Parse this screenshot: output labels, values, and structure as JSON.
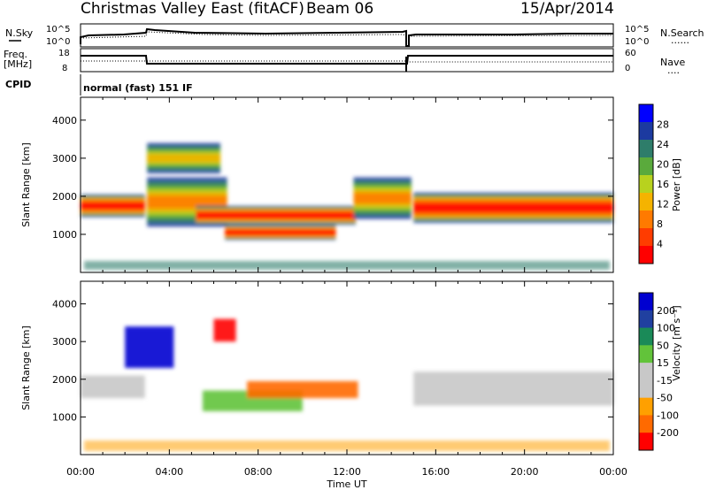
{
  "header": {
    "station": "Christmas Valley East (fitACF)",
    "beam": "Beam 06",
    "date": "15/Apr/2014"
  },
  "panels": {
    "nsky_label": "N.Sky",
    "nsearch_label": "N.Search",
    "nsearch_dots": "......",
    "freq_label_line1": "Freq.",
    "freq_label_line2": "[MHz]",
    "nave_label": "Nave",
    "nave_dots": "....",
    "cpid_label": "CPID",
    "cpid_value": "normal (fast) 151 IF",
    "nsky_ticks": [
      "10^5",
      "10^0"
    ],
    "nsearch_ticks": [
      "10^5",
      "10^0"
    ],
    "freq_ticks": [
      "18",
      "8"
    ],
    "nave_ticks": [
      "60",
      "0"
    ]
  },
  "colors": {
    "power_scale": [
      "#0000ff",
      "#1c3aa0",
      "#2e7d6a",
      "#5aaa3c",
      "#b8d21e",
      "#f5b300",
      "#ff7a00",
      "#ff3c00",
      "#ff0000"
    ],
    "velocity_scale": [
      "#0000d0",
      "#2040a0",
      "#1a8a58",
      "#62c33a",
      "#c8c8c8",
      "#c8c8c8",
      "#ffa000",
      "#ff6a00",
      "#ff0000"
    ]
  },
  "chart_data": [
    {
      "type": "heatmap",
      "name": "power",
      "xlabel": "",
      "ylabel": "Slant Range [km]",
      "xlim": [
        "00:00",
        "24:00"
      ],
      "ylim": [
        0,
        4600
      ],
      "yticks": [
        "4000",
        "3000",
        "2000",
        "1000"
      ],
      "colorbar": {
        "label": "Power [dB]",
        "ticks": [
          "28",
          "24",
          "20",
          "16",
          "12",
          "8",
          "4"
        ]
      },
      "echo_regions": [
        {
          "t_start": 0.0,
          "t_end": 2.9,
          "range_start": 1450,
          "range_end": 2050,
          "level": "high"
        },
        {
          "t_start": 3.0,
          "t_end": 6.6,
          "range_start": 1200,
          "range_end": 2500,
          "level": "medium"
        },
        {
          "t_start": 5.2,
          "t_end": 12.4,
          "range_start": 1250,
          "range_end": 1750,
          "level": "high"
        },
        {
          "t_start": 6.5,
          "t_end": 11.5,
          "range_start": 850,
          "range_end": 1250,
          "level": "high"
        },
        {
          "t_start": 12.3,
          "t_end": 14.9,
          "range_start": 1400,
          "range_end": 2500,
          "level": "medium"
        },
        {
          "t_start": 15.0,
          "t_end": 24.0,
          "range_start": 1300,
          "range_end": 2100,
          "level": "high"
        },
        {
          "t_start": 3.0,
          "t_end": 6.3,
          "range_start": 2600,
          "range_end": 3400,
          "level": "low"
        }
      ]
    },
    {
      "type": "heatmap",
      "name": "velocity",
      "xlabel": "Time UT",
      "ylabel": "Slant Range [km]",
      "xlim": [
        "00:00",
        "24:00"
      ],
      "ylim": [
        0,
        4600
      ],
      "xticks": [
        "00:00",
        "04:00",
        "08:00",
        "12:00",
        "16:00",
        "20:00",
        "00:00"
      ],
      "yticks": [
        "4000",
        "3000",
        "2000",
        "1000"
      ],
      "colorbar": {
        "label": "Velocity [m s⁻¹]",
        "ticks": [
          "200",
          "100",
          "50",
          "15",
          "-15",
          "-50",
          "-100",
          "-200"
        ]
      },
      "echo_regions": [
        {
          "t_start": 0.0,
          "t_end": 2.9,
          "range_start": 1500,
          "range_end": 2100,
          "velocity": 0
        },
        {
          "t_start": 2.0,
          "t_end": 4.2,
          "range_start": 2300,
          "range_end": 3400,
          "velocity": 200
        },
        {
          "t_start": 6.0,
          "t_end": 7.0,
          "range_start": 3000,
          "range_end": 3600,
          "velocity": -200
        },
        {
          "t_start": 5.5,
          "t_end": 10.0,
          "range_start": 1150,
          "range_end": 1700,
          "velocity": 50
        },
        {
          "t_start": 7.5,
          "t_end": 12.5,
          "range_start": 1500,
          "range_end": 1950,
          "velocity": -50
        },
        {
          "t_start": 15.0,
          "t_end": 24.0,
          "range_start": 1300,
          "range_end": 2200,
          "velocity": 0
        }
      ]
    }
  ]
}
